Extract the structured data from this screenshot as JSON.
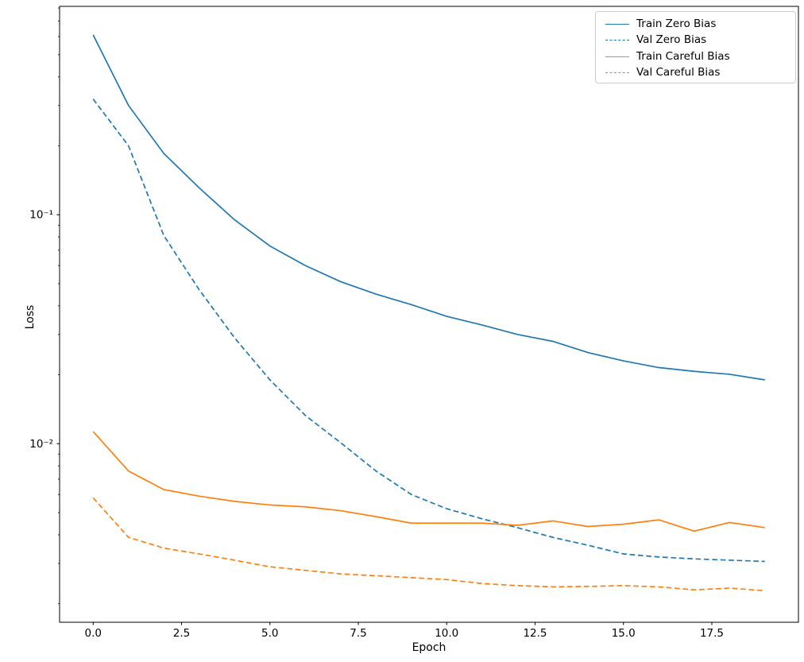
{
  "figure": {
    "background": "#ffffff"
  },
  "chart_data": {
    "type": "line",
    "title": "",
    "xlabel": "Epoch",
    "ylabel": "Loss",
    "x": [
      0,
      1,
      2,
      3,
      4,
      5,
      6,
      7,
      8,
      9,
      10,
      11,
      12,
      13,
      14,
      15,
      16,
      17,
      18,
      19
    ],
    "series": [
      {
        "name": "Train Zero Bias",
        "color": "#1f77b4",
        "style": "solid",
        "values": [
          0.61,
          0.3,
          0.185,
          0.131,
          0.095,
          0.073,
          0.06,
          0.051,
          0.045,
          0.0405,
          0.036,
          0.033,
          0.03,
          0.028,
          0.025,
          0.023,
          0.0215,
          0.0207,
          0.0201,
          0.019
        ]
      },
      {
        "name": "Val Zero Bias",
        "color": "#1f77b4",
        "style": "dashed",
        "values": [
          0.32,
          0.2,
          0.081,
          0.047,
          0.029,
          0.019,
          0.0133,
          0.0101,
          0.0076,
          0.006,
          0.0052,
          0.0047,
          0.0043,
          0.0039,
          0.0036,
          0.0033,
          0.0032,
          0.00314,
          0.0031,
          0.00306
        ]
      },
      {
        "name": "Train Careful Bias",
        "color": "#ff7f0e",
        "style": "solid",
        "values": [
          0.0113,
          0.0076,
          0.0063,
          0.0059,
          0.0056,
          0.0054,
          0.0053,
          0.0051,
          0.0048,
          0.0045,
          0.0045,
          0.0045,
          0.0044,
          0.0046,
          0.00435,
          0.00445,
          0.00465,
          0.00415,
          0.00453,
          0.0043
        ]
      },
      {
        "name": "Val Careful Bias",
        "color": "#ff7f0e",
        "style": "dashed",
        "values": [
          0.0058,
          0.0039,
          0.0035,
          0.0033,
          0.0031,
          0.0029,
          0.0028,
          0.0027,
          0.00265,
          0.0026,
          0.00255,
          0.00245,
          0.0024,
          0.00237,
          0.00238,
          0.0024,
          0.00237,
          0.0023,
          0.00234,
          0.00228
        ]
      }
    ],
    "x_ticks": {
      "values": [
        0,
        2.5,
        5,
        7.5,
        10,
        12.5,
        15,
        17.5
      ],
      "labels": [
        "0.0",
        "2.5",
        "5.0",
        "7.5",
        "10.0",
        "12.5",
        "15.0",
        "17.5"
      ]
    },
    "y_scale": "log",
    "y_ticks": {
      "values": [
        0.1,
        0.01
      ],
      "labels": [
        "10⁻¹",
        "10⁻²"
      ]
    },
    "xlim": [
      -0.95,
      19.95
    ],
    "ylim": [
      0.00166,
      0.813
    ],
    "grid": false,
    "legend": {
      "position": "upper right",
      "entries": [
        "Train Zero Bias",
        "Val Zero Bias",
        "Train Careful Bias",
        "Val Careful Bias"
      ]
    },
    "line_color_blue": "#1f77b4",
    "line_color_orange": "#ff7f0e",
    "axis_color": "#000000",
    "legend_border_color": "#cccccc"
  }
}
